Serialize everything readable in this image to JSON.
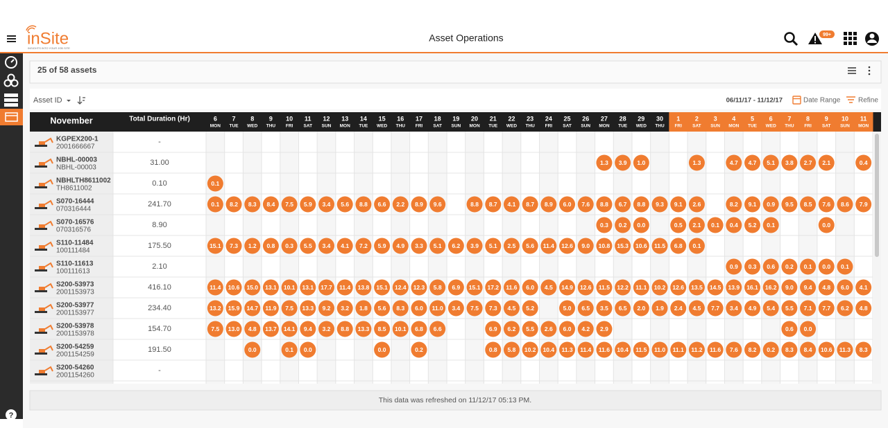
{
  "header": {
    "logo": "inSite",
    "tagline": "INSIGHTS INTO YOUR JOB SITE",
    "title": "Asset Operations",
    "alert_badge": "99+"
  },
  "toolbar": {
    "asset_count": "25 of 58 assets",
    "sort_field": "Asset ID",
    "date_span": "06/11/17 - 11/12/17",
    "date_range": "Date Range",
    "refine": "Refine"
  },
  "table": {
    "month": "November",
    "duration_header": "Total Duration (Hr)",
    "column_groups": [
      {
        "color": "#1f1f1f",
        "columns": [
          {
            "day": "6",
            "weekday": "MON"
          },
          {
            "day": "7",
            "weekday": "TUE"
          },
          {
            "day": "8",
            "weekday": "WED"
          },
          {
            "day": "9",
            "weekday": "THU"
          },
          {
            "day": "10",
            "weekday": "FRI"
          },
          {
            "day": "11",
            "weekday": "SAT"
          },
          {
            "day": "12",
            "weekday": "SUN"
          },
          {
            "day": "13",
            "weekday": "MON"
          },
          {
            "day": "14",
            "weekday": "TUE"
          },
          {
            "day": "15",
            "weekday": "WED"
          },
          {
            "day": "16",
            "weekday": "THU"
          },
          {
            "day": "17",
            "weekday": "FRI"
          },
          {
            "day": "18",
            "weekday": "SAT"
          },
          {
            "day": "19",
            "weekday": "SUN"
          },
          {
            "day": "20",
            "weekday": "MON"
          },
          {
            "day": "21",
            "weekday": "TUE"
          },
          {
            "day": "22",
            "weekday": "WED"
          },
          {
            "day": "23",
            "weekday": "THU"
          },
          {
            "day": "24",
            "weekday": "FRI"
          },
          {
            "day": "25",
            "weekday": "SAT"
          },
          {
            "day": "26",
            "weekday": "SUN"
          },
          {
            "day": "27",
            "weekday": "MON"
          },
          {
            "day": "28",
            "weekday": "TUE"
          },
          {
            "day": "29",
            "weekday": "WED"
          },
          {
            "day": "30",
            "weekday": "THU"
          }
        ]
      },
      {
        "color": "#f07c30",
        "columns": [
          {
            "day": "1",
            "weekday": "FRI"
          },
          {
            "day": "2",
            "weekday": "SAT"
          },
          {
            "day": "3",
            "weekday": "SUN"
          },
          {
            "day": "4",
            "weekday": "MON"
          },
          {
            "day": "5",
            "weekday": "TUE"
          },
          {
            "day": "6",
            "weekday": "WED"
          },
          {
            "day": "7",
            "weekday": "THU"
          },
          {
            "day": "8",
            "weekday": "FRI"
          },
          {
            "day": "9",
            "weekday": "SAT"
          },
          {
            "day": "10",
            "weekday": "SUN"
          },
          {
            "day": "11",
            "weekday": "MON"
          }
        ]
      }
    ],
    "rows": [
      {
        "name": "KGPEX200-1",
        "id": "2001666667",
        "duration": "-",
        "values": [
          null,
          null,
          null,
          null,
          null,
          null,
          null,
          null,
          null,
          null,
          null,
          null,
          null,
          null,
          null,
          null,
          null,
          null,
          null,
          null,
          null,
          null,
          null,
          null,
          null,
          null,
          null,
          null,
          null,
          null,
          null,
          null,
          null,
          null,
          null,
          null
        ]
      },
      {
        "name": "NBHL-00003",
        "id": "NBHL-00003",
        "duration": "31.00",
        "values": [
          null,
          null,
          null,
          null,
          null,
          null,
          null,
          null,
          null,
          null,
          null,
          null,
          null,
          null,
          null,
          null,
          null,
          null,
          null,
          null,
          null,
          "1.3",
          "3.9",
          "1.0",
          null,
          null,
          "1.3",
          null,
          "4.7",
          "4.7",
          "5.1",
          "3.8",
          "2.7",
          "2.1",
          null,
          "0.4"
        ]
      },
      {
        "name": "NBHLTH8611002",
        "id": "TH8611002",
        "duration": "0.10",
        "values": [
          "0.1",
          null,
          null,
          null,
          null,
          null,
          null,
          null,
          null,
          null,
          null,
          null,
          null,
          null,
          null,
          null,
          null,
          null,
          null,
          null,
          null,
          null,
          null,
          null,
          null,
          null,
          null,
          null,
          null,
          null,
          null,
          null,
          null,
          null,
          null,
          null
        ]
      },
      {
        "name": "S070-16444",
        "id": "070316444",
        "duration": "241.70",
        "values": [
          "0.1",
          "8.2",
          "8.3",
          "8.4",
          "7.5",
          "5.9",
          "3.4",
          "5.6",
          "8.8",
          "6.6",
          "2.2",
          "8.9",
          "9.6",
          null,
          "8.8",
          "8.7",
          "4.1",
          "8.7",
          "8.9",
          "6.0",
          "7.6",
          "8.8",
          "6.7",
          "8.8",
          "9.3",
          "9.1",
          "2.6",
          null,
          "8.2",
          "9.1",
          "0.9",
          "9.5",
          "8.5",
          "7.6",
          "8.6",
          "7.9"
        ]
      },
      {
        "name": "S070-16576",
        "id": "070316576",
        "duration": "8.90",
        "values": [
          null,
          null,
          null,
          null,
          null,
          null,
          null,
          null,
          null,
          null,
          null,
          null,
          null,
          null,
          null,
          null,
          null,
          null,
          null,
          null,
          null,
          "0.3",
          "0.2",
          "0.0",
          null,
          "0.5",
          "2.1",
          "0.1",
          "0.4",
          "5.2",
          "0.1",
          null,
          null,
          "0.0",
          null,
          null
        ]
      },
      {
        "name": "S110-11484",
        "id": "100111484",
        "duration": "175.50",
        "values": [
          "15.1",
          "7.3",
          "1.2",
          "0.8",
          "0.3",
          "5.5",
          "3.4",
          "4.1",
          "7.2",
          "5.9",
          "4.9",
          "3.3",
          "5.1",
          "6.2",
          "3.9",
          "5.1",
          "2.5",
          "5.6",
          "11.4",
          "12.6",
          "9.0",
          "10.8",
          "15.3",
          "10.6",
          "11.5",
          "6.8",
          "0.1",
          null,
          null,
          null,
          null,
          null,
          null,
          null,
          null,
          null
        ]
      },
      {
        "name": "S110-11613",
        "id": "100111613",
        "duration": "2.10",
        "values": [
          null,
          null,
          null,
          null,
          null,
          null,
          null,
          null,
          null,
          null,
          null,
          null,
          null,
          null,
          null,
          null,
          null,
          null,
          null,
          null,
          null,
          null,
          null,
          null,
          null,
          null,
          null,
          null,
          "0.9",
          "0.3",
          "0.6",
          "0.2",
          "0.1",
          "0.0",
          "0.1",
          null
        ]
      },
      {
        "name": "S200-53973",
        "id": "2001153973",
        "duration": "416.10",
        "values": [
          "11.4",
          "10.6",
          "15.0",
          "13.1",
          "10.1",
          "13.1",
          "17.7",
          "11.4",
          "13.8",
          "15.1",
          "12.4",
          "12.3",
          "5.8",
          "6.9",
          "15.1",
          "17.2",
          "11.6",
          "6.0",
          "4.5",
          "14.9",
          "12.6",
          "11.5",
          "12.2",
          "11.1",
          "10.2",
          "12.6",
          "13.5",
          "14.5",
          "13.9",
          "16.1",
          "16.2",
          "9.0",
          "9.4",
          "4.8",
          "6.0",
          "4.1"
        ]
      },
      {
        "name": "S200-53977",
        "id": "2001153977",
        "duration": "234.40",
        "values": [
          "13.2",
          "15.9",
          "14.7",
          "11.9",
          "7.5",
          "13.3",
          "9.2",
          "3.2",
          "1.8",
          "5.6",
          "8.3",
          "6.0",
          "11.0",
          "3.4",
          "7.5",
          "7.3",
          "4.5",
          "5.2",
          null,
          "5.0",
          "6.5",
          "3.5",
          "6.5",
          "2.0",
          "1.9",
          "2.4",
          "4.5",
          "7.7",
          "3.4",
          "4.9",
          "5.4",
          "5.5",
          "7.1",
          "7.7",
          "6.2",
          "4.8"
        ]
      },
      {
        "name": "S200-53978",
        "id": "2001153978",
        "duration": "154.70",
        "values": [
          "7.5",
          "13.0",
          "4.8",
          "13.7",
          "14.1",
          "9.4",
          "3.2",
          "8.8",
          "13.3",
          "8.5",
          "10.1",
          "6.8",
          "6.6",
          null,
          null,
          "6.9",
          "6.2",
          "5.5",
          "2.6",
          "6.0",
          "4.2",
          "2.9",
          null,
          null,
          null,
          null,
          null,
          null,
          null,
          null,
          null,
          "0.6",
          "0.0",
          null,
          null,
          null
        ]
      },
      {
        "name": "S200-54259",
        "id": "2001154259",
        "duration": "191.50",
        "values": [
          null,
          null,
          "0.0",
          null,
          "0.1",
          "0.0",
          null,
          null,
          null,
          "0.0",
          null,
          "0.2",
          null,
          null,
          null,
          "0.8",
          "5.8",
          "10.2",
          "10.4",
          "11.3",
          "11.4",
          "11.6",
          "10.4",
          "11.5",
          "11.0",
          "11.1",
          "11.2",
          "11.6",
          "7.6",
          "8.2",
          "0.2",
          "8.3",
          "8.4",
          "10.6",
          "11.3",
          "8.3"
        ]
      },
      {
        "name": "S200-54260",
        "id": "2001154260",
        "duration": "-",
        "values": [
          null,
          null,
          null,
          null,
          null,
          null,
          null,
          null,
          null,
          null,
          null,
          null,
          null,
          null,
          null,
          null,
          null,
          null,
          null,
          null,
          null,
          null,
          null,
          null,
          null,
          null,
          null,
          null,
          null,
          null,
          null,
          null,
          null,
          null,
          null,
          null
        ]
      }
    ]
  },
  "footer": {
    "refreshed": "This data was refreshed on 11/12/17 05:13 PM."
  },
  "help": "?"
}
